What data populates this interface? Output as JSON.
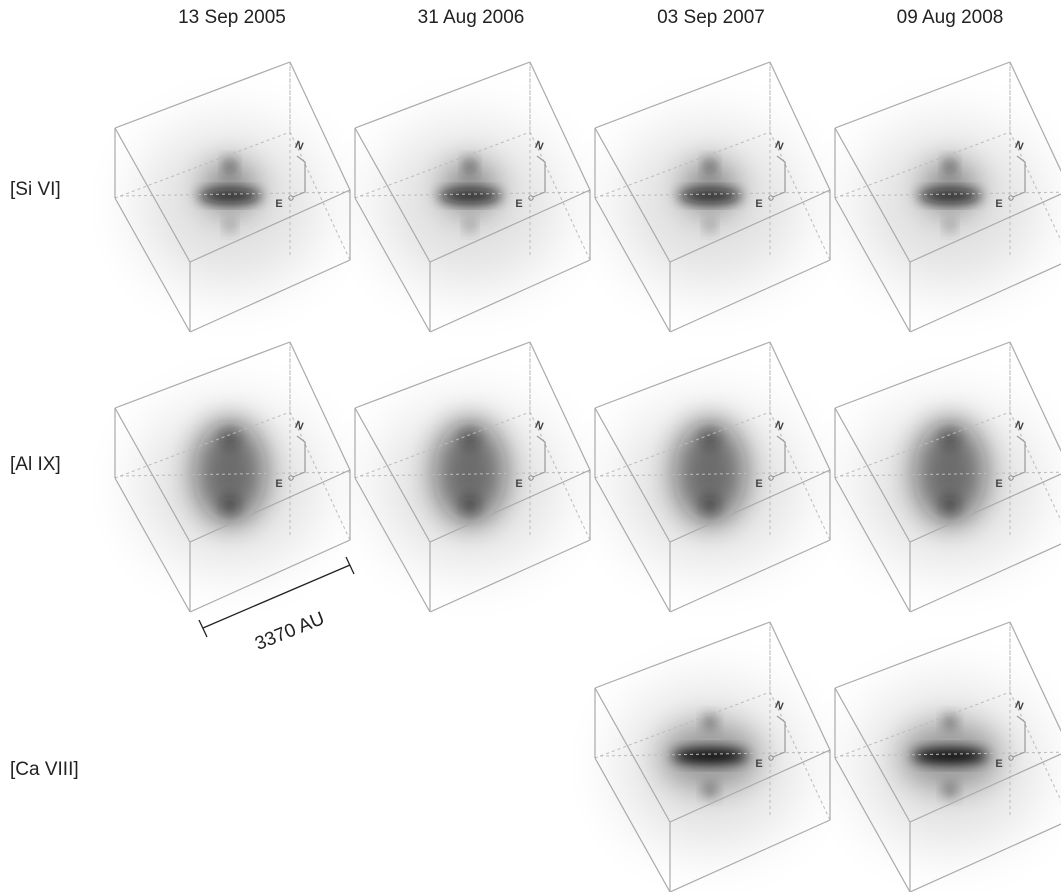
{
  "header": {
    "columns": [
      "13 Sep 2005",
      "31 Aug 2006",
      "03 Sep 2007",
      "09 Aug 2008"
    ]
  },
  "rows": [
    {
      "label": "[Si VI]"
    },
    {
      "label": "[Al IX]"
    },
    {
      "label": "[Ca VIII]"
    }
  ],
  "compass": {
    "north": "N",
    "east": "E"
  },
  "scale_bar": {
    "label": "3370 AU"
  }
}
